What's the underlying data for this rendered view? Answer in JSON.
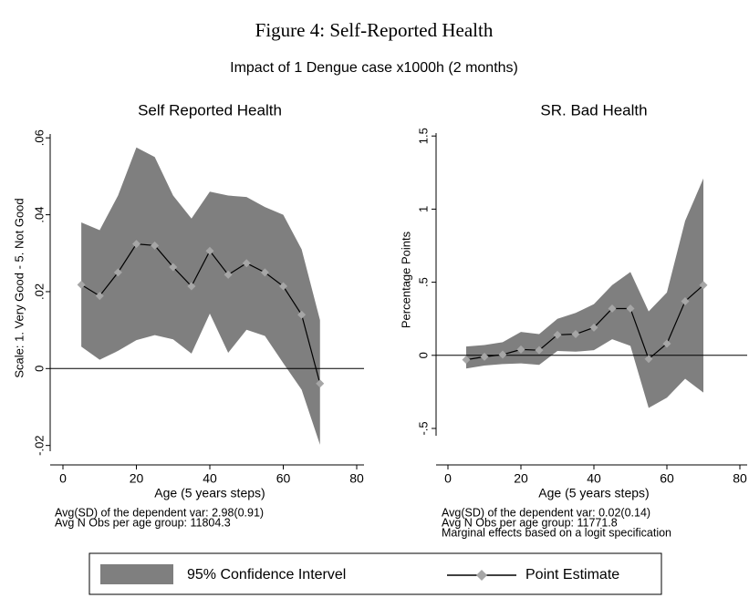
{
  "title": "Figure 4: Self-Reported Health",
  "subtitle": "Impact of 1 Dengue case x1000h (2 months)",
  "legend": [
    {
      "name": "95% Confidence Intervel",
      "color": "#7f7f7f"
    },
    {
      "name": "Point Estimate",
      "color": "#000000",
      "marker_color": "#a6a6a6"
    }
  ],
  "chart_data": [
    {
      "type": "line",
      "title": "Self Reported Health",
      "x_label": "Age (5 years steps)",
      "y_label": "Scale: 1. Very Good - 5. Not Good",
      "notes": [
        "Avg(SD) of the dependent var: 2.98(0.91)",
        "Avg N Obs per age group:  11804.3"
      ],
      "x": [
        5,
        10,
        15,
        20,
        25,
        30,
        35,
        40,
        45,
        50,
        55,
        60,
        65,
        70
      ],
      "ci": {
        "color": "#7f7f7f",
        "upper": [
          0.038,
          0.036,
          0.045,
          0.0575,
          0.055,
          0.045,
          0.039,
          0.046,
          0.045,
          0.0446,
          0.042,
          0.04,
          0.031,
          0.0126
        ],
        "lower": [
          0.0057,
          0.0023,
          0.0046,
          0.0074,
          0.0087,
          0.0076,
          0.0039,
          0.0143,
          0.0041,
          0.0101,
          0.0085,
          0.0014,
          -0.0055,
          -0.0198
        ]
      },
      "estimate": {
        "color": "#000000",
        "marker_color": "#a6a6a6",
        "values": [
          0.0218,
          0.0189,
          0.025,
          0.0324,
          0.032,
          0.0264,
          0.0214,
          0.0306,
          0.0244,
          0.0274,
          0.025,
          0.0214,
          0.014,
          -0.0039
        ]
      },
      "reference_line": 0,
      "xlim": [
        0,
        80
      ],
      "xticks": [
        0,
        20,
        40,
        60,
        80
      ],
      "ylim": [
        -0.0215,
        0.061
      ],
      "yticks": [
        {
          "value": -0.02,
          "label": "-.02"
        },
        0,
        {
          "value": 0.02,
          "label": ".02"
        },
        {
          "value": 0.04,
          "label": ".04"
        },
        {
          "value": 0.06,
          "label": ".06"
        }
      ]
    },
    {
      "type": "line",
      "title": "SR. Bad Health",
      "x_label": "Age (5 years steps)",
      "y_label": "Percentage Points",
      "notes": [
        "Avg(SD) of the dependent var: 0.02(0.14)",
        "Avg N Obs per age group:  11771.8",
        "Marginal effects based on a logit specification"
      ],
      "x": [
        5,
        10,
        15,
        20,
        25,
        30,
        35,
        40,
        45,
        50,
        55,
        60,
        65,
        70
      ],
      "ci": {
        "color": "#7f7f7f",
        "upper": [
          0.06,
          0.07,
          0.09,
          0.16,
          0.145,
          0.25,
          0.29,
          0.35,
          0.48,
          0.57,
          0.3,
          0.43,
          0.92,
          1.21
        ],
        "lower": [
          -0.09,
          -0.07,
          -0.06,
          -0.055,
          -0.065,
          0.03,
          0.025,
          0.035,
          0.11,
          0.065,
          -0.36,
          -0.29,
          -0.16,
          -0.255
        ]
      },
      "estimate": {
        "color": "#000000",
        "marker_color": "#a6a6a6",
        "values": [
          -0.03,
          -0.01,
          0.005,
          0.04,
          0.035,
          0.14,
          0.145,
          0.19,
          0.32,
          0.32,
          -0.025,
          0.08,
          0.37,
          0.48
        ]
      },
      "reference_line": 0,
      "xlim": [
        0,
        80
      ],
      "xticks": [
        0,
        20,
        40,
        60,
        80
      ],
      "ylim": [
        -0.55,
        1.52
      ],
      "yticks": [
        {
          "value": -0.5,
          "label": "-.5"
        },
        0,
        {
          "value": 0.5,
          "label": ".5"
        },
        1,
        {
          "value": 1.5,
          "label": "1.5"
        }
      ]
    }
  ]
}
